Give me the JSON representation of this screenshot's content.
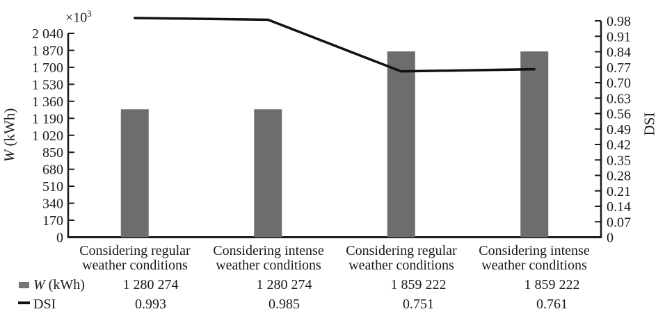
{
  "chart_data": {
    "type": "bar",
    "subtype": "bar-line-combo",
    "categories": [
      "Considering regular weather conditions",
      "Considering intense weather conditions",
      "Considering regular weather conditions",
      "Considering intense weather conditions"
    ],
    "series": [
      {
        "name": "W (kWh)",
        "type": "bar",
        "axis": "left",
        "values": [
          1280274,
          1280274,
          1859222,
          1859222
        ],
        "color": "#6d6d6d"
      },
      {
        "name": "DSI",
        "type": "line",
        "axis": "right",
        "values": [
          0.993,
          0.985,
          0.751,
          0.761
        ],
        "color": "#111111"
      }
    ],
    "title": "",
    "xlabel": "",
    "left_axis": {
      "label": "W (kWh)",
      "unit_multiplier": "×10³",
      "min": 0,
      "max": 2040000,
      "step": 170000,
      "tick_labels": [
        "0",
        "170",
        "340",
        "510",
        "680",
        "850",
        "1 020",
        "1 190",
        "1 360",
        "1 530",
        "1 700",
        "1 870",
        "2 040"
      ]
    },
    "right_axis": {
      "label": "DSI",
      "min": 0,
      "max": 0.98,
      "step": 0.07,
      "tick_labels": [
        "0",
        "0.07",
        "0.14",
        "0.21",
        "0.28",
        "0.35",
        "0.42",
        "0.49",
        "0.56",
        "0.63",
        "0.70",
        "0.77",
        "0.84",
        "0.91",
        "0.98"
      ]
    },
    "grid": false,
    "legend_position": "bottom-left data table"
  },
  "left_axis": {
    "title_italic": "W",
    "title_rest": " (kWh)",
    "multiplier_base": "×10",
    "multiplier_exp": "3"
  },
  "right_axis": {
    "title": "DSI"
  },
  "categories": [
    {
      "line1": "Considering regular",
      "line2": "weather conditions"
    },
    {
      "line1": "Considering intense",
      "line2": "weather conditions"
    },
    {
      "line1": "Considering regular",
      "line2": "weather conditions"
    },
    {
      "line1": "Considering intense",
      "line2": "weather conditions"
    }
  ],
  "table": {
    "w_row": {
      "label_italic": "W",
      "label_rest": " (kWh)",
      "values": [
        "1 280 274",
        "1 280 274",
        "1 859 222",
        "1 859 222"
      ]
    },
    "dsi_row": {
      "label": "DSI",
      "values": [
        "0.993",
        "0.985",
        "0.751",
        "0.761"
      ]
    }
  },
  "colors": {
    "bar": "#6d6d6d",
    "line": "#111111",
    "axis": "#1a1a1a",
    "text": "#1a1a1a"
  }
}
